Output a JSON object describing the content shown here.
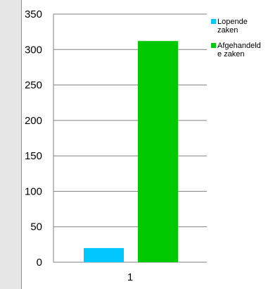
{
  "chart_data": {
    "type": "bar",
    "categories": [
      "1"
    ],
    "series": [
      {
        "name": "Lopende zaken",
        "values": [
          20
        ],
        "color": "#00c8ff"
      },
      {
        "name": "Afgehandelde zaken",
        "values": [
          312
        ],
        "color": "#00c800"
      }
    ],
    "ylim": [
      0,
      350
    ],
    "yticks": [
      0,
      50,
      100,
      150,
      200,
      250,
      300,
      350
    ],
    "grid": true,
    "legend": "top-right",
    "legend_lines": [
      [
        "Lopende",
        "zaken"
      ],
      [
        "Afgehandeld",
        "e zaken"
      ]
    ]
  }
}
